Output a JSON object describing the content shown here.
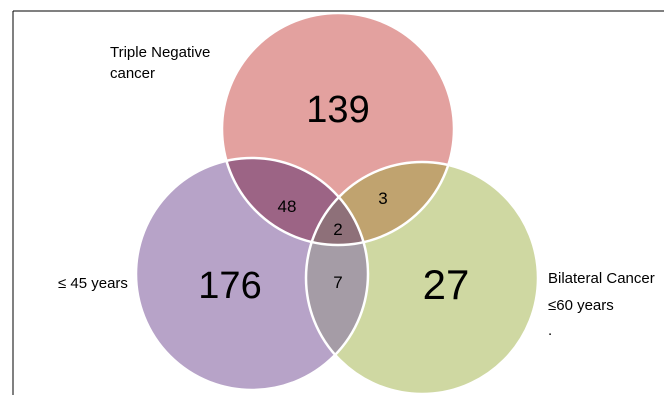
{
  "sets": [
    {
      "id": "triple_negative",
      "label_lines": [
        "Triple Negative",
        "cancer"
      ],
      "color": "#e3a19f"
    },
    {
      "id": "age_45",
      "label_lines": [
        "≤ 45 years"
      ],
      "color": "#b7a3c8"
    },
    {
      "id": "bilateral",
      "label_lines": [
        "Bilateral Cancer",
        "≤60 years",
        "."
      ],
      "color": "#cfd8a2"
    }
  ],
  "regions": {
    "triple_negative_only": "139",
    "age_45_only": "176",
    "bilateral_only": "27",
    "triple_negative_and_age_45": "48",
    "triple_negative_and_bilateral": "3",
    "age_45_and_bilateral": "7",
    "all_three": "2"
  },
  "colors": {
    "overlap_tn_age": "#9c6485",
    "overlap_tn_bilateral": "#c0a36f",
    "overlap_age_bilateral": "#a59ca6",
    "overlap_all": "#8e7079",
    "circle_outline": "#ffffff",
    "frame_border": "#000000"
  }
}
